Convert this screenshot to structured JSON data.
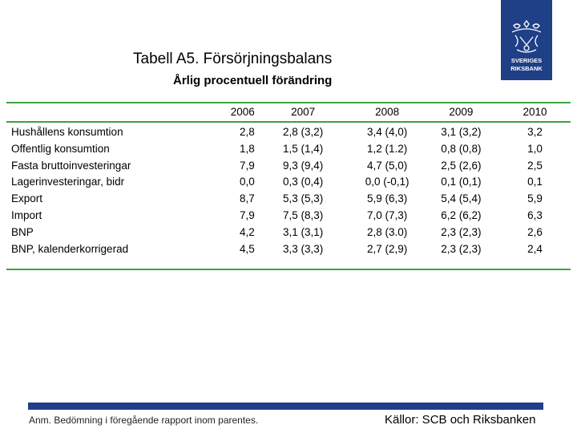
{
  "logo": {
    "text": "SVERIGES RIKSBANK"
  },
  "title": "Tabell A5. Försörjningsbalans",
  "subtitle": "Årlig procentuell förändring",
  "table": {
    "columns": [
      "",
      "2006",
      "2007",
      "2008",
      "2009",
      "2010"
    ],
    "rows": [
      [
        "Hushållens konsumtion",
        "2,8",
        "2,8 (3,2)",
        "3,4 (4,0)",
        "3,1 (3,2)",
        "3,2"
      ],
      [
        "Offentlig konsumtion",
        "1,8",
        "1,5 (1,4)",
        "1,2 (1.2)",
        "0,8 (0,8)",
        "1,0"
      ],
      [
        "Fasta bruttoinvesteringar",
        "7,9",
        "9,3 (9,4)",
        "4,7 (5,0)",
        "2,5 (2,6)",
        "2,5"
      ],
      [
        "Lagerinvesteringar, bidr",
        "0,0",
        "0,3 (0,4)",
        "0,0 (-0,1)",
        "0,1 (0,1)",
        "0,1"
      ],
      [
        "Export",
        "8,7",
        "5,3 (5,3)",
        "5,9 (6,3)",
        "5,4 (5,4)",
        "5,9"
      ],
      [
        "Import",
        "7,9",
        "7,5 (8,3)",
        "7,0 (7,3)",
        "6,2 (6,2)",
        "6,3"
      ],
      [
        "BNP",
        "4,2",
        "3,1 (3,1)",
        "2,8 (3.0)",
        "2,3 (2,3)",
        "2,6"
      ],
      [
        "BNP, kalenderkorrigerad",
        "4,5",
        "3,3 (3,3)",
        "2,7 (2,9)",
        "2,3 (2,3)",
        "2,4"
      ]
    ]
  },
  "note": "Anm. Bedömning i föregående rapport inom parentes.",
  "source": "Källor: SCB och Riksbanken",
  "colors": {
    "brand_blue": "#1f3f87",
    "rule_green": "#3ea044"
  }
}
